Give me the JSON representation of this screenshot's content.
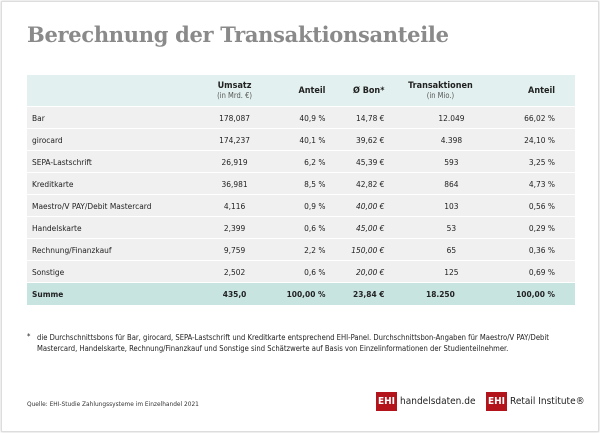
{
  "title": "Berechnung der Transaktionsanteile",
  "columns": [
    {
      "label": "",
      "sub": ""
    },
    {
      "label": "Umsatz",
      "sub": "(in Mrd. €)"
    },
    {
      "label": "Anteil",
      "sub": ""
    },
    {
      "label": "Ø Bon*",
      "sub": ""
    },
    {
      "label": "Transaktionen",
      "sub": "(in Mio.)"
    },
    {
      "label": "Anteil",
      "sub": ""
    }
  ],
  "rows": [
    {
      "name": "Bar",
      "umsatz": "178,087",
      "anteil": "40,9 %",
      "bon": "14,78 €",
      "trans": "12.049",
      "tanteil": "66,02 %"
    },
    {
      "name": "girocard",
      "umsatz": "174,237",
      "anteil": "40,1 %",
      "bon": "39,62 €",
      "trans": "4.398",
      "tanteil": "24,10 %"
    },
    {
      "name": "SEPA-Lastschrift",
      "umsatz": "26,919",
      "anteil": "6,2 %",
      "bon": "45,39 €",
      "trans": "593",
      "tanteil": "3,25 %"
    },
    {
      "name": "Kreditkarte",
      "umsatz": "36,981",
      "anteil": "8,5 %",
      "bon": "42,82 €",
      "trans": "864",
      "tanteil": "4,73 %"
    },
    {
      "name": "Maestro/V PAY/Debit Mastercard",
      "umsatz": "4,116",
      "anteil": "0,9 %",
      "bon": "40,00 €",
      "trans": "103",
      "tanteil": "0,56 %"
    },
    {
      "name": "Handelskarte",
      "umsatz": "2,399",
      "anteil": "0,6 %",
      "bon": "45,00 €",
      "trans": "53",
      "tanteil": "0,29 %"
    },
    {
      "name": "Rechnung/Finanzkauf",
      "umsatz": "9,759",
      "anteil": "2,2 %",
      "bon": "150,00 €",
      "trans": "65",
      "tanteil": "0,36 %"
    },
    {
      "name": "Sonstige",
      "umsatz": "2,502",
      "anteil": "0,6 %",
      "bon": "20,00 €",
      "trans": "125",
      "tanteil": "0,69 %"
    }
  ],
  "sum": {
    "name": "Summe",
    "umsatz": "435,0",
    "anteil": "100,00 %",
    "bon": "23,84 €",
    "trans": "18.250",
    "tanteil": "100,00 %"
  },
  "footnote": {
    "marker": "*",
    "text": "die Durchschnittsbons für Bar, girocard, SEPA-Lastschrift und Kreditkarte entsprechend EHI-Panel. Durchschnittsbon-Angaben für Maestro/V PAY/Debit Mastercard, Handelskarte, Rechnung/Finanzkauf und Sonstige sind Schätzwerte auf Basis von Einzelinformationen der Studienteilnehmer."
  },
  "source": "Quelle: EHI-Studie Zahlungssysteme im Einzelhandel 2021",
  "logos": [
    {
      "box": "EHI",
      "text": "handelsdaten.de"
    },
    {
      "box": "EHI",
      "text": "Retail Institute®"
    }
  ],
  "colors": {
    "header": "#e2f1ef",
    "sum": "#c7e4e1",
    "row": "#f0f0f0",
    "brand": "#b3131b",
    "title": "#8a8a8a"
  }
}
